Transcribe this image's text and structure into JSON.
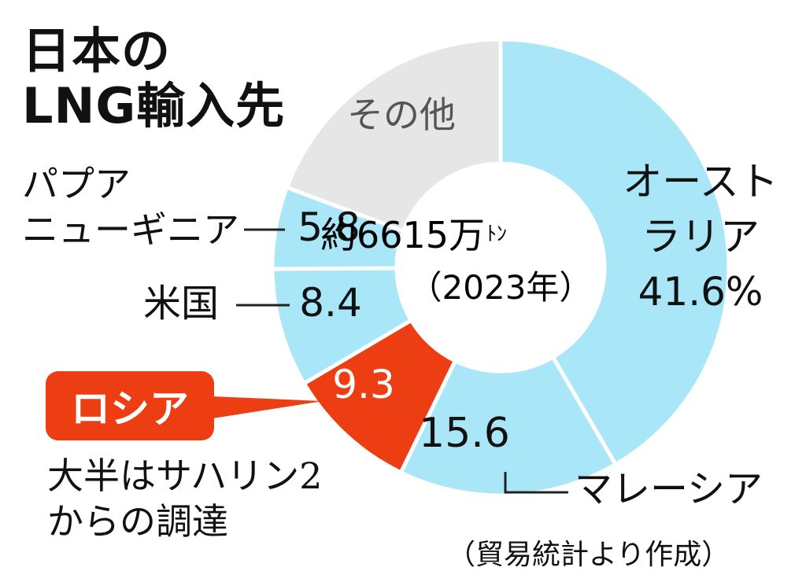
{
  "title_line1": "日本の",
  "title_line2": "LNG輸入先",
  "center_line1": "約6615万",
  "center_unit": "ﾄﾝ",
  "center_line2": "（2023年）",
  "russia_callout": "ロシア",
  "russia_note_line1": "大半はサハリン2",
  "russia_note_line2": "からの調達",
  "source": "（貿易統計より作成）",
  "colors": {
    "main": "#a8e6f8",
    "russia": "#ec3e12",
    "other": "#e6e6e6",
    "text": "#111111"
  },
  "chart_data": {
    "type": "pie",
    "title": "日本のLNG輸入先",
    "total_label": "約6615万ﾄﾝ（2023年）",
    "slices": [
      {
        "name": "オーストラリア",
        "value": 41.6,
        "label_lines": [
          "オースト",
          "ラリア",
          "41.6%"
        ],
        "color": "#a8e6f8"
      },
      {
        "name": "マレーシア",
        "value": 15.6,
        "label_lines": [
          "15.6"
        ],
        "color": "#a8e6f8"
      },
      {
        "name": "ロシア",
        "value": 9.3,
        "label_lines": [
          "9.3"
        ],
        "color": "#ec3e12"
      },
      {
        "name": "米国",
        "value": 8.4,
        "label_lines": [
          "8.4"
        ],
        "color": "#a8e6f8"
      },
      {
        "name": "パプアニューギニア",
        "value": 5.8,
        "label_lines": [
          "5.8"
        ],
        "color": "#a8e6f8"
      },
      {
        "name": "その他",
        "value": 19.3,
        "label_lines": [
          "その他"
        ],
        "color": "#e6e6e6"
      }
    ],
    "external_labels": [
      {
        "slice": "マレーシア",
        "lines": [
          "マレーシア"
        ]
      },
      {
        "slice": "米国",
        "lines": [
          "米国"
        ]
      },
      {
        "slice": "パプアニューギニア",
        "lines": [
          "パプア",
          "ニューギニア"
        ]
      }
    ]
  }
}
